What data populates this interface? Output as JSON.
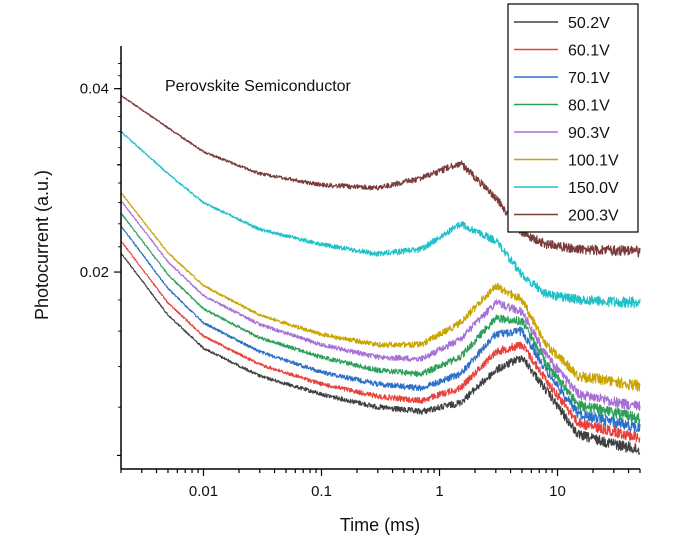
{
  "chart_data": {
    "type": "line",
    "title": "",
    "annotation": "Perovskite Semiconductor",
    "xlabel": "Time (ms)",
    "ylabel": "Photocurrent (a.u.)",
    "xscale": "log",
    "yscale": "log",
    "xlim": [
      0.002,
      50
    ],
    "ylim": [
      0.0095,
      0.047
    ],
    "xticks": [
      0.01,
      0.1,
      1,
      10
    ],
    "xtick_labels": [
      "0.01",
      "0.1",
      "1",
      "10"
    ],
    "yticks": [
      0.02,
      0.04
    ],
    "ytick_labels": [
      "0.02",
      "0.04"
    ],
    "grid": false,
    "legend_position": "top-right",
    "x": [
      0.002,
      0.005,
      0.01,
      0.03,
      0.1,
      0.3,
      0.7,
      1.5,
      3,
      5,
      8,
      15,
      50
    ],
    "series": [
      {
        "name": "50.2V",
        "color": "#404040",
        "values": [
          0.0215,
          0.017,
          0.015,
          0.0135,
          0.0126,
          0.012,
          0.0118,
          0.0122,
          0.0138,
          0.0145,
          0.0128,
          0.0108,
          0.0102
        ]
      },
      {
        "name": "60.1V",
        "color": "#e8413c",
        "values": [
          0.0225,
          0.0178,
          0.0157,
          0.0141,
          0.0131,
          0.0125,
          0.0123,
          0.0129,
          0.0148,
          0.0152,
          0.0133,
          0.0113,
          0.0107
        ]
      },
      {
        "name": "70.1V",
        "color": "#2a6fc9",
        "values": [
          0.0238,
          0.0188,
          0.0165,
          0.0148,
          0.0137,
          0.0131,
          0.0129,
          0.0136,
          0.0158,
          0.016,
          0.0138,
          0.0117,
          0.0111
        ]
      },
      {
        "name": "80.1V",
        "color": "#2e9e5b",
        "values": [
          0.025,
          0.0198,
          0.0174,
          0.0156,
          0.0145,
          0.0138,
          0.0136,
          0.0145,
          0.0168,
          0.0166,
          0.0142,
          0.0121,
          0.0115
        ]
      },
      {
        "name": "90.3V",
        "color": "#a86fd6",
        "values": [
          0.0262,
          0.0208,
          0.0183,
          0.0164,
          0.0152,
          0.0145,
          0.0144,
          0.0155,
          0.0178,
          0.0172,
          0.0146,
          0.0126,
          0.012
        ]
      },
      {
        "name": "100.1V",
        "color": "#c9a400",
        "values": [
          0.027,
          0.0215,
          0.019,
          0.017,
          0.0158,
          0.0152,
          0.0152,
          0.0165,
          0.019,
          0.018,
          0.0152,
          0.0135,
          0.013
        ]
      },
      {
        "name": "150.0V",
        "color": "#1fc1c9",
        "values": [
          0.034,
          0.029,
          0.026,
          0.0235,
          0.0222,
          0.0214,
          0.0218,
          0.024,
          0.0225,
          0.0198,
          0.0184,
          0.018,
          0.0178
        ]
      },
      {
        "name": "200.3V",
        "color": "#7a3b3b",
        "values": [
          0.039,
          0.0345,
          0.0315,
          0.029,
          0.0278,
          0.0275,
          0.0285,
          0.0302,
          0.0265,
          0.0232,
          0.0222,
          0.0218,
          0.0216
        ]
      }
    ]
  }
}
